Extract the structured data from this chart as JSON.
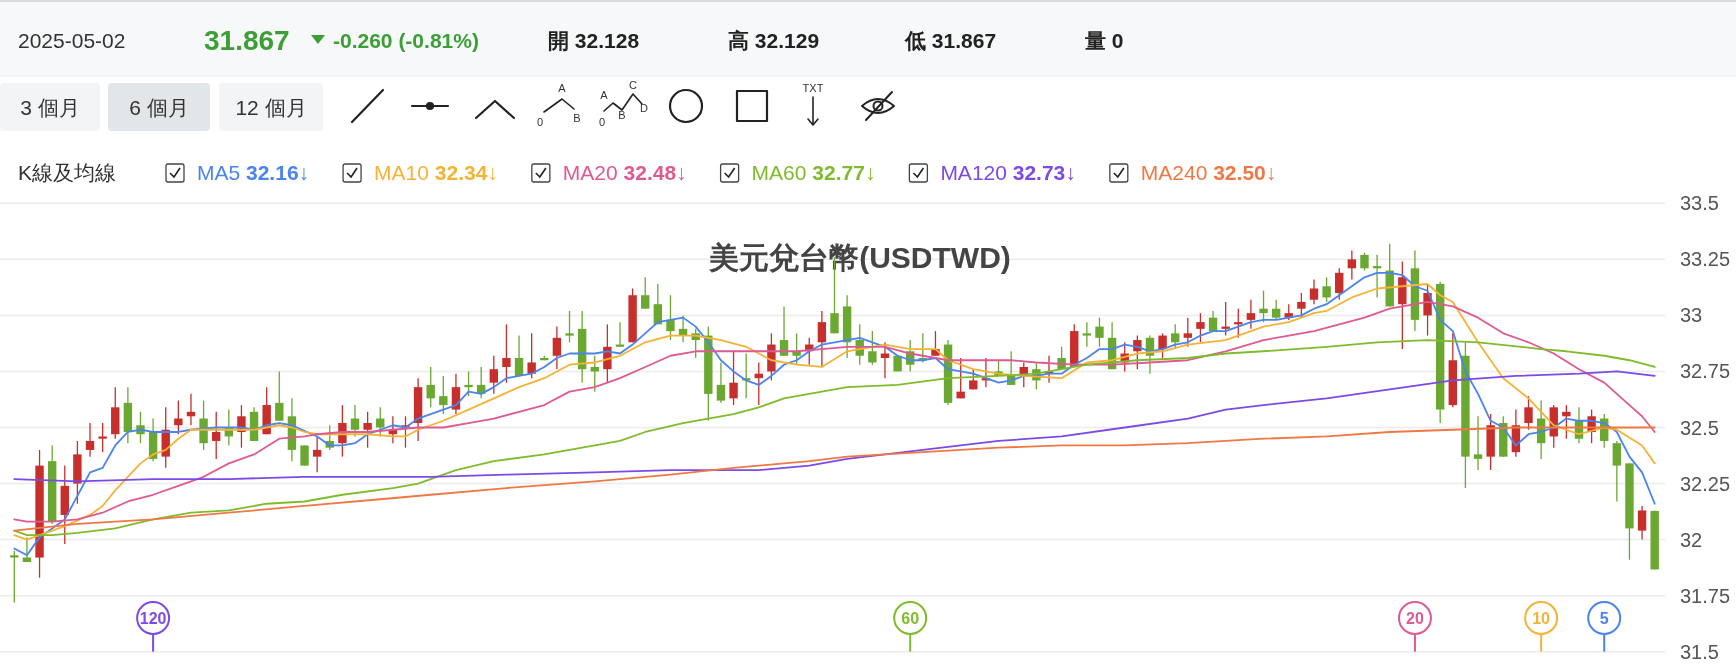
{
  "chart_data": {
    "type": "candlestick",
    "title": "美元兌台幣(USDTWD)",
    "legend_title": "K線及均線",
    "legend": "top left",
    "grid": "y",
    "tick_labels": "y",
    "ylim": [
      31.5,
      33.5
    ],
    "yticks": [
      31.5,
      31.75,
      32,
      32.25,
      32.5,
      32.75,
      33,
      33.25,
      33.5
    ],
    "categories": [
      null,
      null,
      null,
      null,
      null,
      null,
      null,
      null,
      null,
      null,
      null,
      null,
      null,
      null,
      null,
      null,
      null,
      null,
      null,
      null,
      null,
      null,
      null,
      null,
      null,
      null,
      null,
      null,
      null,
      null,
      null,
      null,
      null,
      null,
      null,
      null,
      null,
      null,
      null,
      null,
      null,
      null,
      null,
      null,
      null,
      null,
      null,
      null,
      null,
      null,
      null,
      null,
      null,
      null,
      null,
      null,
      null,
      null,
      null,
      null,
      null,
      null,
      null,
      null,
      null,
      null,
      null,
      null,
      null,
      null,
      null,
      null,
      null,
      null,
      null,
      null,
      null,
      null,
      null,
      null,
      null,
      null,
      null,
      null,
      null,
      null,
      null,
      null,
      null,
      null,
      null,
      null,
      null,
      null,
      null,
      null,
      null,
      null,
      null,
      null,
      null,
      null,
      null,
      null,
      null,
      null,
      null,
      null,
      null,
      null,
      null,
      null,
      null,
      null,
      null,
      null,
      null,
      null,
      null,
      null,
      null,
      null,
      null,
      null,
      null,
      null,
      null,
      null,
      null,
      null,
      null
    ],
    "annotations": [
      "2025-05-02",
      "31.867",
      "-0.260 (-0.81%)",
      "開 32.128",
      "高 32.129",
      "低 31.867",
      "量 0",
      "3 個月",
      "6 個月",
      "12 個月",
      "A",
      "0",
      "B",
      "C",
      "A",
      "0",
      "B",
      "D",
      "TXT",
      "120",
      "60",
      "20",
      "10",
      "5"
    ],
    "series": [
      {
        "ohlc": [
          [
            31.93,
            31.95,
            31.72,
            31.92
          ],
          [
            31.92,
            32.01,
            31.9,
            31.9
          ],
          [
            31.92,
            32.4,
            31.83,
            32.33
          ],
          [
            32.35,
            32.42,
            32.07,
            32.08
          ],
          [
            32.11,
            32.33,
            31.98,
            32.24
          ],
          [
            32.25,
            32.44,
            32.16,
            32.38
          ],
          [
            32.4,
            32.52,
            32.37,
            32.44
          ],
          [
            32.45,
            32.52,
            32.39,
            32.46
          ],
          [
            32.47,
            32.68,
            32.45,
            32.59
          ],
          [
            32.61,
            32.68,
            32.43,
            32.48
          ],
          [
            32.51,
            32.57,
            32.43,
            32.47
          ],
          [
            32.48,
            32.54,
            32.35,
            32.36
          ],
          [
            32.37,
            32.59,
            32.32,
            32.49
          ],
          [
            32.51,
            32.62,
            32.47,
            32.54
          ],
          [
            32.55,
            32.65,
            32.51,
            32.57
          ],
          [
            32.54,
            32.62,
            32.4,
            32.43
          ],
          [
            32.44,
            32.57,
            32.36,
            32.48
          ],
          [
            32.5,
            32.58,
            32.42,
            32.46
          ],
          [
            32.48,
            32.6,
            32.41,
            32.55
          ],
          [
            32.57,
            32.59,
            32.44,
            32.44
          ],
          [
            32.47,
            32.68,
            32.47,
            32.6
          ],
          [
            32.61,
            32.75,
            32.53,
            32.53
          ],
          [
            32.55,
            32.63,
            32.35,
            32.4
          ],
          [
            32.42,
            32.42,
            32.33,
            32.33
          ],
          [
            32.37,
            32.46,
            32.3,
            32.4
          ],
          [
            32.44,
            32.51,
            32.4,
            32.41
          ],
          [
            32.43,
            32.6,
            32.37,
            32.52
          ],
          [
            32.54,
            32.6,
            32.46,
            32.49
          ],
          [
            32.49,
            32.57,
            32.41,
            32.52
          ],
          [
            32.54,
            32.59,
            32.46,
            32.5
          ],
          [
            32.47,
            32.55,
            32.43,
            32.49
          ],
          [
            32.5,
            32.55,
            32.41,
            32.51
          ],
          [
            32.52,
            32.72,
            32.44,
            32.68
          ],
          [
            32.69,
            32.77,
            32.59,
            32.63
          ],
          [
            32.64,
            32.73,
            32.56,
            32.6
          ],
          [
            32.58,
            32.74,
            32.56,
            32.68
          ],
          [
            32.69,
            32.75,
            32.64,
            32.68
          ],
          [
            32.69,
            32.77,
            32.63,
            32.65
          ],
          [
            32.7,
            32.82,
            32.65,
            32.76
          ],
          [
            32.77,
            32.96,
            32.7,
            32.81
          ],
          [
            32.81,
            32.91,
            32.73,
            32.73
          ],
          [
            32.74,
            32.92,
            32.72,
            32.79
          ],
          [
            32.81,
            32.82,
            32.8,
            32.8
          ],
          [
            32.82,
            32.95,
            32.76,
            32.9
          ],
          [
            32.92,
            33.02,
            32.88,
            32.91
          ],
          [
            32.94,
            33.02,
            32.7,
            32.76
          ],
          [
            32.77,
            32.82,
            32.66,
            32.75
          ],
          [
            32.76,
            32.96,
            32.7,
            32.86
          ],
          [
            32.87,
            32.97,
            32.86,
            32.86
          ],
          [
            32.88,
            33.12,
            32.88,
            33.09
          ],
          [
            33.09,
            33.17,
            33.03,
            33.03
          ],
          [
            33.05,
            33.14,
            32.96,
            32.96
          ],
          [
            32.98,
            33.09,
            32.89,
            32.93
          ],
          [
            32.94,
            33.0,
            32.88,
            32.91
          ],
          [
            32.92,
            32.94,
            32.81,
            32.89
          ],
          [
            32.91,
            32.95,
            32.53,
            32.65
          ],
          [
            32.69,
            32.79,
            32.61,
            32.62
          ],
          [
            32.63,
            32.84,
            32.6,
            32.7
          ],
          [
            32.72,
            32.83,
            32.63,
            32.71
          ],
          [
            32.72,
            32.79,
            32.6,
            32.74
          ],
          [
            32.75,
            32.92,
            32.71,
            32.87
          ],
          [
            32.89,
            33.04,
            32.82,
            32.82
          ],
          [
            32.84,
            32.92,
            32.78,
            32.82
          ],
          [
            32.84,
            32.9,
            32.78,
            32.87
          ],
          [
            32.88,
            33.02,
            32.77,
            32.97
          ],
          [
            33.01,
            33.26,
            32.92,
            32.92
          ],
          [
            33.04,
            33.09,
            32.81,
            32.88
          ],
          [
            32.89,
            32.96,
            32.78,
            32.82
          ],
          [
            32.84,
            32.93,
            32.78,
            32.79
          ],
          [
            32.81,
            32.88,
            32.72,
            32.83
          ],
          [
            32.82,
            32.82,
            32.75,
            32.75
          ],
          [
            32.84,
            32.89,
            32.75,
            32.78
          ],
          [
            32.81,
            32.92,
            32.79,
            32.8
          ],
          [
            32.82,
            32.93,
            32.82,
            32.85
          ],
          [
            32.87,
            32.89,
            32.6,
            32.61
          ],
          [
            32.63,
            32.81,
            32.63,
            32.66
          ],
          [
            32.67,
            32.76,
            32.67,
            32.71
          ],
          [
            32.71,
            32.81,
            32.68,
            32.72
          ],
          [
            32.75,
            32.8,
            32.73,
            32.73
          ],
          [
            32.73,
            32.84,
            32.69,
            32.69
          ],
          [
            32.73,
            32.79,
            32.68,
            32.77
          ],
          [
            32.76,
            32.79,
            32.67,
            32.71
          ],
          [
            32.74,
            32.82,
            32.7,
            32.75
          ],
          [
            32.81,
            32.86,
            32.76,
            32.76
          ],
          [
            32.77,
            32.96,
            32.77,
            32.93
          ],
          [
            32.92,
            32.97,
            32.86,
            32.91
          ],
          [
            32.95,
            32.99,
            32.86,
            32.9
          ],
          [
            32.9,
            32.97,
            32.76,
            32.76
          ],
          [
            32.79,
            32.88,
            32.75,
            32.83
          ],
          [
            32.84,
            32.91,
            32.76,
            32.89
          ],
          [
            32.9,
            32.91,
            32.74,
            32.82
          ],
          [
            32.85,
            32.92,
            32.81,
            32.91
          ],
          [
            32.92,
            32.96,
            32.85,
            32.88
          ],
          [
            32.9,
            32.99,
            32.86,
            32.92
          ],
          [
            32.94,
            33.01,
            32.88,
            32.97
          ],
          [
            32.99,
            33.02,
            32.93,
            32.93
          ],
          [
            32.94,
            33.06,
            32.91,
            32.95
          ],
          [
            32.96,
            33.03,
            32.9,
            32.97
          ],
          [
            32.98,
            33.07,
            32.94,
            33.01
          ],
          [
            33.03,
            33.11,
            32.97,
            33.01
          ],
          [
            33.03,
            33.07,
            32.98,
            32.99
          ],
          [
            32.99,
            33.05,
            32.98,
            33.01
          ],
          [
            33.03,
            33.1,
            32.99,
            33.06
          ],
          [
            33.07,
            33.16,
            33.05,
            33.12
          ],
          [
            33.13,
            33.17,
            33.06,
            33.08
          ],
          [
            33.1,
            33.21,
            33.07,
            33.19
          ],
          [
            33.21,
            33.29,
            33.16,
            33.25
          ],
          [
            33.27,
            33.28,
            33.2,
            33.21
          ],
          [
            33.22,
            33.27,
            33.08,
            33.21
          ],
          [
            33.2,
            33.32,
            33.04,
            33.04
          ],
          [
            33.05,
            33.24,
            32.85,
            33.17
          ],
          [
            33.21,
            33.29,
            32.93,
            32.98
          ],
          [
            33.0,
            33.14,
            32.91,
            33.1
          ],
          [
            33.14,
            33.15,
            32.52,
            32.58
          ],
          [
            32.6,
            32.92,
            32.59,
            32.8
          ],
          [
            32.82,
            32.88,
            32.23,
            32.37
          ],
          [
            32.38,
            32.55,
            32.31,
            32.36
          ],
          [
            32.37,
            32.56,
            32.31,
            32.51
          ],
          [
            32.52,
            32.55,
            32.37,
            32.37
          ],
          [
            32.39,
            32.58,
            32.37,
            32.51
          ],
          [
            32.52,
            32.64,
            32.49,
            32.59
          ],
          [
            32.54,
            32.62,
            32.36,
            32.43
          ],
          [
            32.46,
            32.6,
            32.41,
            32.59
          ],
          [
            32.55,
            32.6,
            32.45,
            32.57
          ],
          [
            32.53,
            32.59,
            32.43,
            32.45
          ],
          [
            32.48,
            32.58,
            32.43,
            32.55
          ],
          [
            32.54,
            32.56,
            32.41,
            32.44
          ],
          [
            32.43,
            32.44,
            32.17,
            32.33
          ],
          [
            32.34,
            32.34,
            31.91,
            32.05
          ],
          [
            32.04,
            32.15,
            32.0,
            32.13
          ],
          [
            32.128,
            32.129,
            31.867,
            31.867
          ]
        ],
        "colors": [
          "#6aa832",
          "#6aa832",
          "#c62f2b",
          "#6aa832",
          "#c62f2b",
          "#c62f2b",
          "#c62f2b",
          "#c62f2b",
          "#c62f2b",
          "#6aa832",
          "#6aa832",
          "#6aa832",
          "#c62f2b",
          "#c62f2b",
          "#c62f2b",
          "#6aa832",
          "#c62f2b",
          "#6aa832",
          "#c62f2b",
          "#6aa832",
          "#c62f2b",
          "#6aa832",
          "#6aa832",
          "#6aa832",
          "#c62f2b",
          "#6aa832",
          "#c62f2b",
          "#6aa832",
          "#c62f2b",
          "#6aa832",
          "#c62f2b",
          "#c62f2b",
          "#c62f2b",
          "#6aa832",
          "#6aa832",
          "#c62f2b",
          "#6aa832",
          "#6aa832",
          "#c62f2b",
          "#c62f2b",
          "#6aa832",
          "#c62f2b",
          "#6aa832",
          "#c62f2b",
          "#6aa832",
          "#6aa832",
          "#6aa832",
          "#c62f2b",
          "#6aa832",
          "#c62f2b",
          "#6aa832",
          "#6aa832",
          "#6aa832",
          "#6aa832",
          "#6aa832",
          "#6aa832",
          "#6aa832",
          "#c62f2b",
          "#6aa832",
          "#c62f2b",
          "#c62f2b",
          "#6aa832",
          "#6aa832",
          "#c62f2b",
          "#c62f2b",
          "#6aa832",
          "#6aa832",
          "#6aa832",
          "#6aa832",
          "#c62f2b",
          "#6aa832",
          "#6aa832",
          "#6aa832",
          "#c62f2b",
          "#6aa832",
          "#c62f2b",
          "#c62f2b",
          "#c62f2b",
          "#6aa832",
          "#6aa832",
          "#c62f2b",
          "#6aa832",
          "#c62f2b",
          "#6aa832",
          "#c62f2b",
          "#6aa832",
          "#6aa832",
          "#6aa832",
          "#c62f2b",
          "#c62f2b",
          "#6aa832",
          "#c62f2b",
          "#6aa832",
          "#c62f2b",
          "#c62f2b",
          "#6aa832",
          "#c62f2b",
          "#c62f2b",
          "#c62f2b",
          "#6aa832",
          "#6aa832",
          "#c62f2b",
          "#c62f2b",
          "#c62f2b",
          "#6aa832",
          "#c62f2b",
          "#c62f2b",
          "#6aa832",
          "#6aa832",
          "#6aa832",
          "#c62f2b",
          "#6aa832",
          "#c62f2b",
          "#6aa832",
          "#c62f2b",
          "#6aa832",
          "#6aa832",
          "#c62f2b",
          "#6aa832",
          "#c62f2b",
          "#c62f2b",
          "#6aa832",
          "#c62f2b",
          "#c62f2b",
          "#6aa832",
          "#c62f2b",
          "#6aa832",
          "#6aa832",
          "#6aa832",
          "#c62f2b",
          "#6aa832"
        ]
      },
      {
        "type": "line",
        "name": "MA5 **32.16**↓",
        "color": "#4a84ee",
        "values": [
          31.96,
          31.93,
          32.01,
          null,
          32.09,
          null,
          32.3,
          32.32,
          32.42,
          32.48,
          32.49,
          32.48,
          null,
          32.48,
          32.49,
          null,
          32.5,
          null,
          32.5,
          32.49,
          32.51,
          32.52,
          32.51,
          null,
          32.46,
          32.42,
          32.42,
          32.43,
          32.47,
          null,
          32.51,
          32.5,
          32.54,
          32.56,
          32.58,
          32.6,
          32.66,
          32.65,
          32.68,
          32.72,
          32.73,
          32.74,
          32.77,
          32.81,
          32.83,
          32.83,
          32.83,
          32.84,
          32.83,
          32.87,
          32.92,
          32.97,
          32.98,
          32.99,
          32.95,
          32.88,
          32.8,
          32.75,
          32.71,
          32.69,
          32.73,
          32.78,
          32.8,
          32.84,
          32.87,
          32.88,
          32.89,
          32.9,
          32.88,
          32.86,
          32.82,
          32.8,
          32.8,
          32.81,
          32.76,
          32.75,
          32.74,
          32.72,
          32.7,
          32.71,
          32.73,
          32.73,
          32.74,
          32.74,
          32.78,
          32.81,
          32.85,
          32.85,
          32.87,
          32.86,
          32.84,
          32.85,
          32.87,
          32.88,
          32.91,
          32.93,
          32.93,
          32.95,
          32.97,
          32.98,
          32.98,
          32.99,
          33.0,
          33.03,
          33.05,
          33.09,
          33.13,
          33.17,
          33.19,
          33.19,
          33.18,
          33.13,
          33.11,
          32.98,
          32.93,
          32.75,
          32.65,
          32.53,
          32.5,
          32.42,
          32.47,
          32.48,
          32.5,
          32.54,
          32.53,
          32.53,
          32.52,
          32.48,
          32.37,
          32.3,
          32.16
        ]
      },
      {
        "type": "line",
        "name": "MA10 **32.34**↓",
        "color": "#f5b335",
        "values": [
          32.02,
          32.0,
          32.02,
          null,
          32.06,
          null,
          32.11,
          32.15,
          32.22,
          32.28,
          32.34,
          32.38,
          32.4,
          32.45,
          32.49,
          null,
          32.49,
          null,
          32.49,
          32.49,
          32.5,
          32.51,
          32.5,
          32.48,
          32.47,
          null,
          32.47,
          null,
          32.47,
          null,
          32.46,
          32.46,
          32.49,
          32.51,
          32.53,
          null,
          32.58,
          null,
          32.63,
          null,
          32.68,
          null,
          32.72,
          null,
          32.78,
          null,
          32.79,
          null,
          32.82,
          null,
          32.88,
          null,
          32.91,
          null,
          32.91,
          null,
          32.89,
          null,
          32.86,
          null,
          32.8,
          null,
          32.78,
          null,
          32.77,
          null,
          32.84,
          32.85,
          null,
          32.87,
          null,
          32.85,
          null,
          32.85,
          32.8,
          null,
          32.76,
          null,
          32.74,
          null,
          32.73,
          null,
          null,
          32.72,
          null,
          32.79,
          null,
          32.8,
          null,
          32.83,
          null,
          32.84,
          null,
          32.87,
          null,
          null,
          32.89,
          32.91,
          null,
          32.95,
          null,
          32.97,
          null,
          33.01,
          33.02,
          null,
          33.08,
          null,
          33.12,
          null,
          33.13,
          null,
          33.14,
          33.09,
          33.06,
          null,
          32.88,
          null,
          32.72,
          null,
          32.63,
          null,
          32.51,
          null,
          32.47,
          null,
          32.5,
          32.49,
          null,
          32.42,
          32.34
        ]
      },
      {
        "type": "line",
        "name": "MA20 **32.48**↓",
        "color": "#de5a92",
        "values": [
          32.09,
          32.08,
          null,
          32.08,
          null,
          32.09,
          null,
          32.12,
          null,
          32.17,
          null,
          32.2,
          null,
          32.24,
          null,
          32.28,
          null,
          32.34,
          null,
          32.38,
          null,
          32.45,
          null,
          32.46,
          32.47,
          null,
          32.48,
          null,
          32.48,
          null,
          32.49,
          null,
          32.5,
          32.5,
          32.5,
          null,
          32.52,
          null,
          32.54,
          null,
          32.57,
          null,
          32.6,
          null,
          32.66,
          null,
          32.68,
          null,
          32.72,
          null,
          32.77,
          null,
          32.82,
          null,
          32.84,
          null,
          32.84,
          null,
          null,
          32.84,
          null,
          null,
          32.84,
          null,
          32.85,
          null,
          32.86,
          32.86,
          null,
          32.86,
          null,
          32.83,
          null,
          null,
          32.8,
          null,
          null,
          32.8,
          null,
          32.8,
          null,
          32.79,
          null,
          null,
          32.78,
          null,
          null,
          32.78,
          null,
          null,
          32.79,
          null,
          null,
          32.8,
          null,
          null,
          32.84,
          null,
          null,
          32.89,
          null,
          32.91,
          null,
          32.93,
          null,
          32.96,
          null,
          32.99,
          null,
          33.03,
          null,
          33.05,
          33.06,
          null,
          33.04,
          null,
          32.99,
          null,
          32.92,
          null,
          32.88,
          null,
          32.83,
          null,
          32.76,
          null,
          32.7,
          null,
          32.6,
          32.55,
          32.48
        ]
      },
      {
        "type": "line",
        "name": "MA60 **32.77**↓",
        "color": "#7fbb2c",
        "values": [
          32.04,
          32.02,
          null,
          32.02,
          null,
          32.03,
          null,
          null,
          32.05,
          null,
          null,
          32.09,
          null,
          null,
          32.12,
          null,
          null,
          32.13,
          null,
          null,
          32.16,
          null,
          null,
          32.17,
          null,
          null,
          32.2,
          null,
          null,
          null,
          32.23,
          null,
          32.25,
          32.27,
          null,
          32.31,
          null,
          null,
          32.35,
          null,
          null,
          null,
          32.38,
          null,
          null,
          null,
          32.42,
          null,
          32.44,
          null,
          32.48,
          null,
          null,
          32.52,
          null,
          32.54,
          null,
          32.56,
          null,
          32.59,
          null,
          32.63,
          null,
          32.65,
          null,
          32.67,
          32.68,
          null,
          null,
          null,
          32.69,
          null,
          null,
          null,
          32.72,
          null,
          null,
          null,
          32.73,
          null,
          null,
          32.74,
          null,
          null,
          null,
          32.78,
          null,
          null,
          null,
          32.8,
          null,
          null,
          null,
          32.81,
          null,
          null,
          32.83,
          null,
          null,
          32.84,
          null,
          null,
          null,
          null,
          32.86,
          null,
          null,
          null,
          32.88,
          null,
          null,
          null,
          32.89,
          null,
          null,
          null,
          32.88,
          null,
          null,
          null,
          null,
          32.85,
          null,
          32.84,
          null,
          null,
          32.82,
          null,
          32.8,
          null,
          32.77
        ]
      },
      {
        "type": "line",
        "name": "MA120 **32.73**↓",
        "color": "#7c4ae6",
        "values": [
          32.27,
          null,
          null,
          null,
          null,
          32.26,
          null,
          null,
          null,
          null,
          null,
          32.27,
          null,
          null,
          null,
          null,
          null,
          32.27,
          null,
          null,
          null,
          null,
          null,
          32.28,
          null,
          null,
          null,
          null,
          null,
          32.28,
          null,
          null,
          null,
          32.28,
          null,
          null,
          null,
          null,
          null,
          32.29,
          null,
          null,
          null,
          null,
          null,
          null,
          32.3,
          null,
          null,
          null,
          null,
          null,
          32.31,
          null,
          null,
          null,
          null,
          32.31,
          null,
          32.31,
          null,
          null,
          null,
          32.33,
          null,
          null,
          32.36,
          null,
          null,
          null,
          null,
          null,
          32.4,
          null,
          null,
          null,
          null,
          null,
          32.44,
          null,
          null,
          null,
          null,
          32.46,
          null,
          null,
          null,
          null,
          32.5,
          null,
          null,
          null,
          null,
          32.54,
          null,
          null,
          32.58,
          null,
          null,
          32.6,
          null,
          null,
          null,
          null,
          32.63,
          null,
          null,
          null,
          null,
          32.67,
          null,
          null,
          null,
          null,
          32.71,
          null,
          null,
          null,
          null,
          32.73,
          null,
          null,
          null,
          null,
          32.74,
          null,
          null,
          32.75,
          null,
          null,
          32.73
        ]
      },
      {
        "type": "line",
        "name": "MA240 **32.50**↓",
        "color": "#f07845",
        "values": [
          32.04,
          null,
          null,
          null,
          null,
          32.07,
          null,
          null,
          null,
          null,
          null,
          32.09,
          null,
          null,
          null,
          null,
          null,
          32.12,
          null,
          null,
          null,
          null,
          null,
          32.15,
          null,
          null,
          null,
          null,
          null,
          32.18,
          null,
          null,
          null,
          32.2,
          null,
          null,
          null,
          null,
          null,
          32.23,
          null,
          null,
          null,
          null,
          null,
          null,
          32.26,
          null,
          null,
          null,
          null,
          null,
          32.29,
          null,
          null,
          null,
          null,
          32.32,
          null,
          null,
          null,
          null,
          null,
          32.35,
          null,
          null,
          32.37,
          null,
          null,
          null,
          null,
          null,
          32.39,
          null,
          null,
          null,
          null,
          null,
          32.41,
          null,
          null,
          null,
          null,
          32.42,
          null,
          null,
          null,
          null,
          32.42,
          null,
          null,
          null,
          null,
          32.43,
          null,
          null,
          32.44,
          null,
          null,
          32.45,
          null,
          null,
          null,
          null,
          32.46,
          null,
          null,
          null,
          null,
          32.48,
          null,
          null,
          null,
          null,
          32.49,
          null,
          null,
          null,
          null,
          32.5,
          null,
          null,
          null,
          null,
          32.5,
          null,
          null,
          32.5,
          null,
          null,
          32.5
        ]
      }
    ]
  }
}
